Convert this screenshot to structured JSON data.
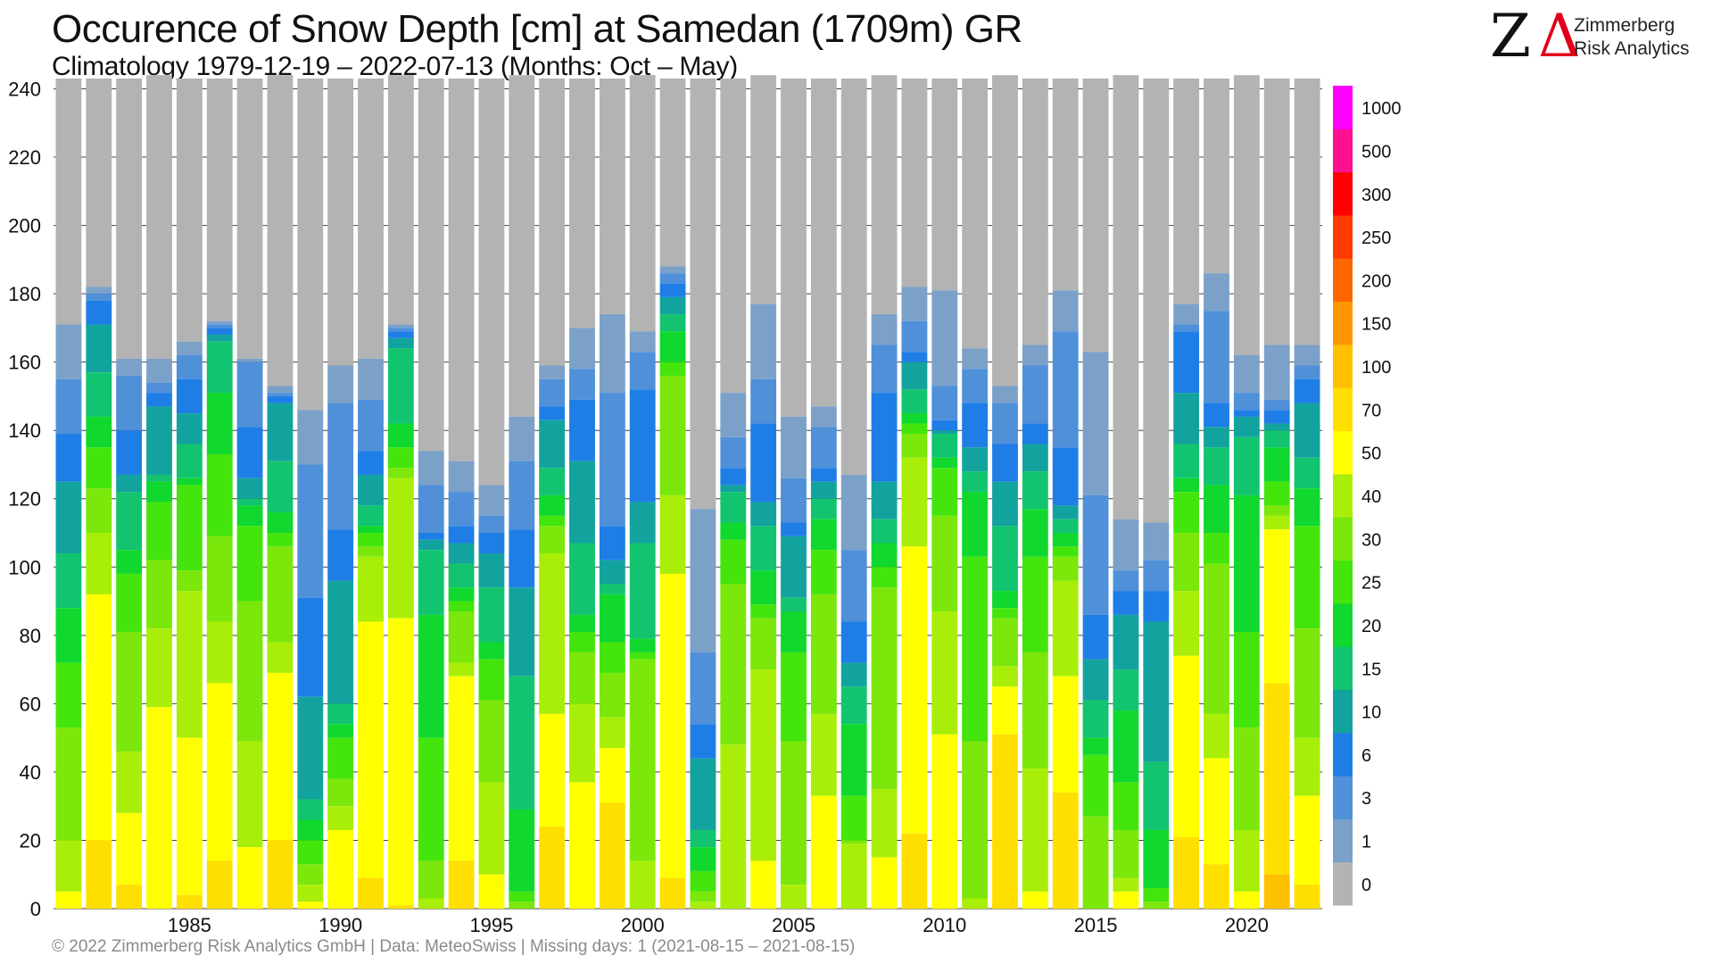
{
  "title": "Occurence of Snow Depth [cm] at Samedan (1709m) GR",
  "subtitle": "Climatology 1979-12-19 – 2022-07-13 (Months: Oct – May)",
  "logo": {
    "name_line1": "Zimmerberg",
    "name_line2": "Risk Analytics",
    "mark_z": "Z",
    "mark_delta": "Δ"
  },
  "footer": "©  2022 Zimmerberg Risk Analytics GmbH | Data: MeteoSwiss | Missing days: 1 (2021-08-15 – 2021-08-15)",
  "chart_data": {
    "type": "bar",
    "stacked": true,
    "xlabel": "",
    "ylabel": "",
    "ylim": [
      0,
      243
    ],
    "yticks": [
      0,
      20,
      40,
      60,
      80,
      100,
      120,
      140,
      160,
      180,
      200,
      220,
      240
    ],
    "xticks": [
      1985,
      1990,
      1995,
      2000,
      2005,
      2010,
      2015,
      2020
    ],
    "grid": true,
    "value_semantics": "cumulative number of days per season (Oct–May) with snow depth of at least the class value; top of each bar = total days in season",
    "legend": {
      "placement": "right",
      "classes": [
        "0",
        "1",
        "3",
        "6",
        "10",
        "15",
        "20",
        "25",
        "30",
        "40",
        "50",
        "70",
        "100",
        "150",
        "200",
        "250",
        "300",
        "500",
        "1000"
      ],
      "colors": [
        "#b3b3b3",
        "#7ba1c9",
        "#4f90d9",
        "#1f7ee6",
        "#13a39e",
        "#12c46f",
        "#10d82e",
        "#44e50c",
        "#7be70a",
        "#a9ee08",
        "#ffff00",
        "#ffdf00",
        "#ffc000",
        "#ff9600",
        "#ff6600",
        "#ff3a00",
        "#ff0000",
        "#ff1090",
        "#ff00ff"
      ]
    },
    "series_by_season_end_year": [
      {
        "year": 1981,
        "values": [
          243,
          171,
          155,
          139,
          125,
          104,
          88,
          72,
          53,
          20,
          5,
          0
        ]
      },
      {
        "year": 1982,
        "values": [
          243,
          182,
          180,
          178,
          171,
          157,
          144,
          135,
          123,
          110,
          92,
          20
        ]
      },
      {
        "year": 1983,
        "values": [
          243,
          161,
          156,
          140,
          127,
          122,
          105,
          98,
          81,
          46,
          28,
          7
        ]
      },
      {
        "year": 1984,
        "values": [
          244,
          161,
          154,
          151,
          147,
          127,
          125,
          119,
          102,
          82,
          59,
          0
        ]
      },
      {
        "year": 1985,
        "values": [
          243,
          166,
          162,
          155,
          145,
          136,
          126,
          124,
          99,
          93,
          50,
          4
        ]
      },
      {
        "year": 1986,
        "values": [
          243,
          172,
          171,
          170,
          168,
          166,
          151,
          133,
          109,
          84,
          66,
          14
        ]
      },
      {
        "year": 1987,
        "values": [
          243,
          161,
          160,
          141,
          126,
          120,
          118,
          112,
          90,
          49,
          18,
          0
        ]
      },
      {
        "year": 1988,
        "values": [
          244,
          153,
          151,
          150,
          148,
          131,
          116,
          110,
          106,
          78,
          69,
          20
        ]
      },
      {
        "year": 1989,
        "values": [
          243,
          146,
          130,
          91,
          62,
          32,
          26,
          20,
          13,
          7,
          2,
          0
        ]
      },
      {
        "year": 1990,
        "values": [
          243,
          159,
          148,
          111,
          96,
          60,
          54,
          50,
          38,
          30,
          23,
          0
        ]
      },
      {
        "year": 1991,
        "values": [
          243,
          161,
          149,
          134,
          127,
          118,
          112,
          110,
          106,
          103,
          84,
          9
        ]
      },
      {
        "year": 1992,
        "values": [
          244,
          171,
          170,
          169,
          167,
          164,
          142,
          135,
          129,
          126,
          85,
          1
        ]
      },
      {
        "year": 1993,
        "values": [
          243,
          134,
          124,
          110,
          108,
          105,
          86,
          50,
          14,
          3,
          0,
          0
        ]
      },
      {
        "year": 1994,
        "values": [
          243,
          131,
          122,
          112,
          107,
          101,
          94,
          90,
          87,
          72,
          68,
          14
        ]
      },
      {
        "year": 1995,
        "values": [
          243,
          124,
          115,
          110,
          104,
          94,
          78,
          73,
          61,
          37,
          10,
          0
        ]
      },
      {
        "year": 1996,
        "values": [
          244,
          144,
          131,
          111,
          94,
          68,
          29,
          5,
          2,
          0,
          0,
          0
        ]
      },
      {
        "year": 1997,
        "values": [
          243,
          159,
          155,
          147,
          143,
          129,
          121,
          115,
          112,
          104,
          57,
          24
        ]
      },
      {
        "year": 1998,
        "values": [
          243,
          170,
          158,
          149,
          131,
          107,
          86,
          81,
          75,
          60,
          37,
          0
        ]
      },
      {
        "year": 1999,
        "values": [
          243,
          174,
          151,
          112,
          102,
          95,
          92,
          78,
          69,
          56,
          47,
          31
        ]
      },
      {
        "year": 2000,
        "values": [
          244,
          169,
          163,
          152,
          119,
          107,
          79,
          75,
          73,
          14,
          0,
          0
        ]
      },
      {
        "year": 2001,
        "values": [
          243,
          188,
          186,
          183,
          179,
          174,
          169,
          160,
          156,
          121,
          98,
          9
        ]
      },
      {
        "year": 2002,
        "values": [
          243,
          117,
          75,
          54,
          44,
          23,
          18,
          11,
          5,
          2,
          0,
          0
        ]
      },
      {
        "year": 2003,
        "values": [
          243,
          151,
          138,
          129,
          124,
          122,
          113,
          108,
          95,
          48,
          0,
          0
        ]
      },
      {
        "year": 2004,
        "values": [
          244,
          177,
          155,
          142,
          119,
          112,
          99,
          89,
          85,
          70,
          14,
          0
        ]
      },
      {
        "year": 2005,
        "values": [
          243,
          144,
          126,
          113,
          109,
          91,
          87,
          75,
          49,
          7,
          0,
          0
        ]
      },
      {
        "year": 2006,
        "values": [
          243,
          147,
          141,
          129,
          125,
          120,
          114,
          105,
          92,
          57,
          33,
          0
        ]
      },
      {
        "year": 2007,
        "values": [
          243,
          127,
          105,
          84,
          72,
          65,
          54,
          33,
          20,
          19,
          0,
          0
        ]
      },
      {
        "year": 2008,
        "values": [
          244,
          174,
          165,
          151,
          125,
          114,
          107,
          100,
          94,
          35,
          15,
          0
        ]
      },
      {
        "year": 2009,
        "values": [
          243,
          182,
          172,
          163,
          160,
          152,
          145,
          142,
          139,
          132,
          106,
          22
        ]
      },
      {
        "year": 2010,
        "values": [
          243,
          181,
          153,
          143,
          140,
          139,
          132,
          129,
          115,
          87,
          51,
          0
        ]
      },
      {
        "year": 2011,
        "values": [
          243,
          164,
          158,
          148,
          135,
          128,
          122,
          103,
          49,
          3,
          0,
          0
        ]
      },
      {
        "year": 2012,
        "values": [
          244,
          153,
          148,
          136,
          125,
          112,
          93,
          88,
          85,
          71,
          65,
          51
        ]
      },
      {
        "year": 2013,
        "values": [
          243,
          165,
          159,
          142,
          136,
          128,
          117,
          103,
          75,
          41,
          5,
          0
        ]
      },
      {
        "year": 2014,
        "values": [
          243,
          181,
          169,
          135,
          118,
          114,
          110,
          106,
          103,
          96,
          68,
          34
        ]
      },
      {
        "year": 2015,
        "values": [
          243,
          163,
          121,
          86,
          73,
          61,
          50,
          45,
          27,
          0,
          0,
          0
        ]
      },
      {
        "year": 2016,
        "values": [
          244,
          114,
          99,
          93,
          86,
          70,
          58,
          37,
          23,
          9,
          5,
          0
        ]
      },
      {
        "year": 2017,
        "values": [
          243,
          113,
          102,
          93,
          84,
          43,
          23,
          6,
          2,
          0,
          0,
          0
        ]
      },
      {
        "year": 2018,
        "values": [
          243,
          177,
          171,
          169,
          151,
          136,
          126,
          122,
          110,
          93,
          74,
          21
        ]
      },
      {
        "year": 2019,
        "values": [
          243,
          186,
          175,
          148,
          141,
          135,
          124,
          110,
          101,
          57,
          44,
          13
        ]
      },
      {
        "year": 2020,
        "values": [
          244,
          162,
          151,
          146,
          144,
          138,
          121,
          81,
          53,
          23,
          5,
          0
        ]
      },
      {
        "year": 2021,
        "values": [
          243,
          165,
          149,
          146,
          142,
          140,
          135,
          125,
          118,
          115,
          111,
          66,
          10
        ]
      },
      {
        "year": 2022,
        "values": [
          243,
          165,
          159,
          155,
          148,
          132,
          123,
          112,
          82,
          50,
          33,
          7
        ]
      }
    ]
  }
}
